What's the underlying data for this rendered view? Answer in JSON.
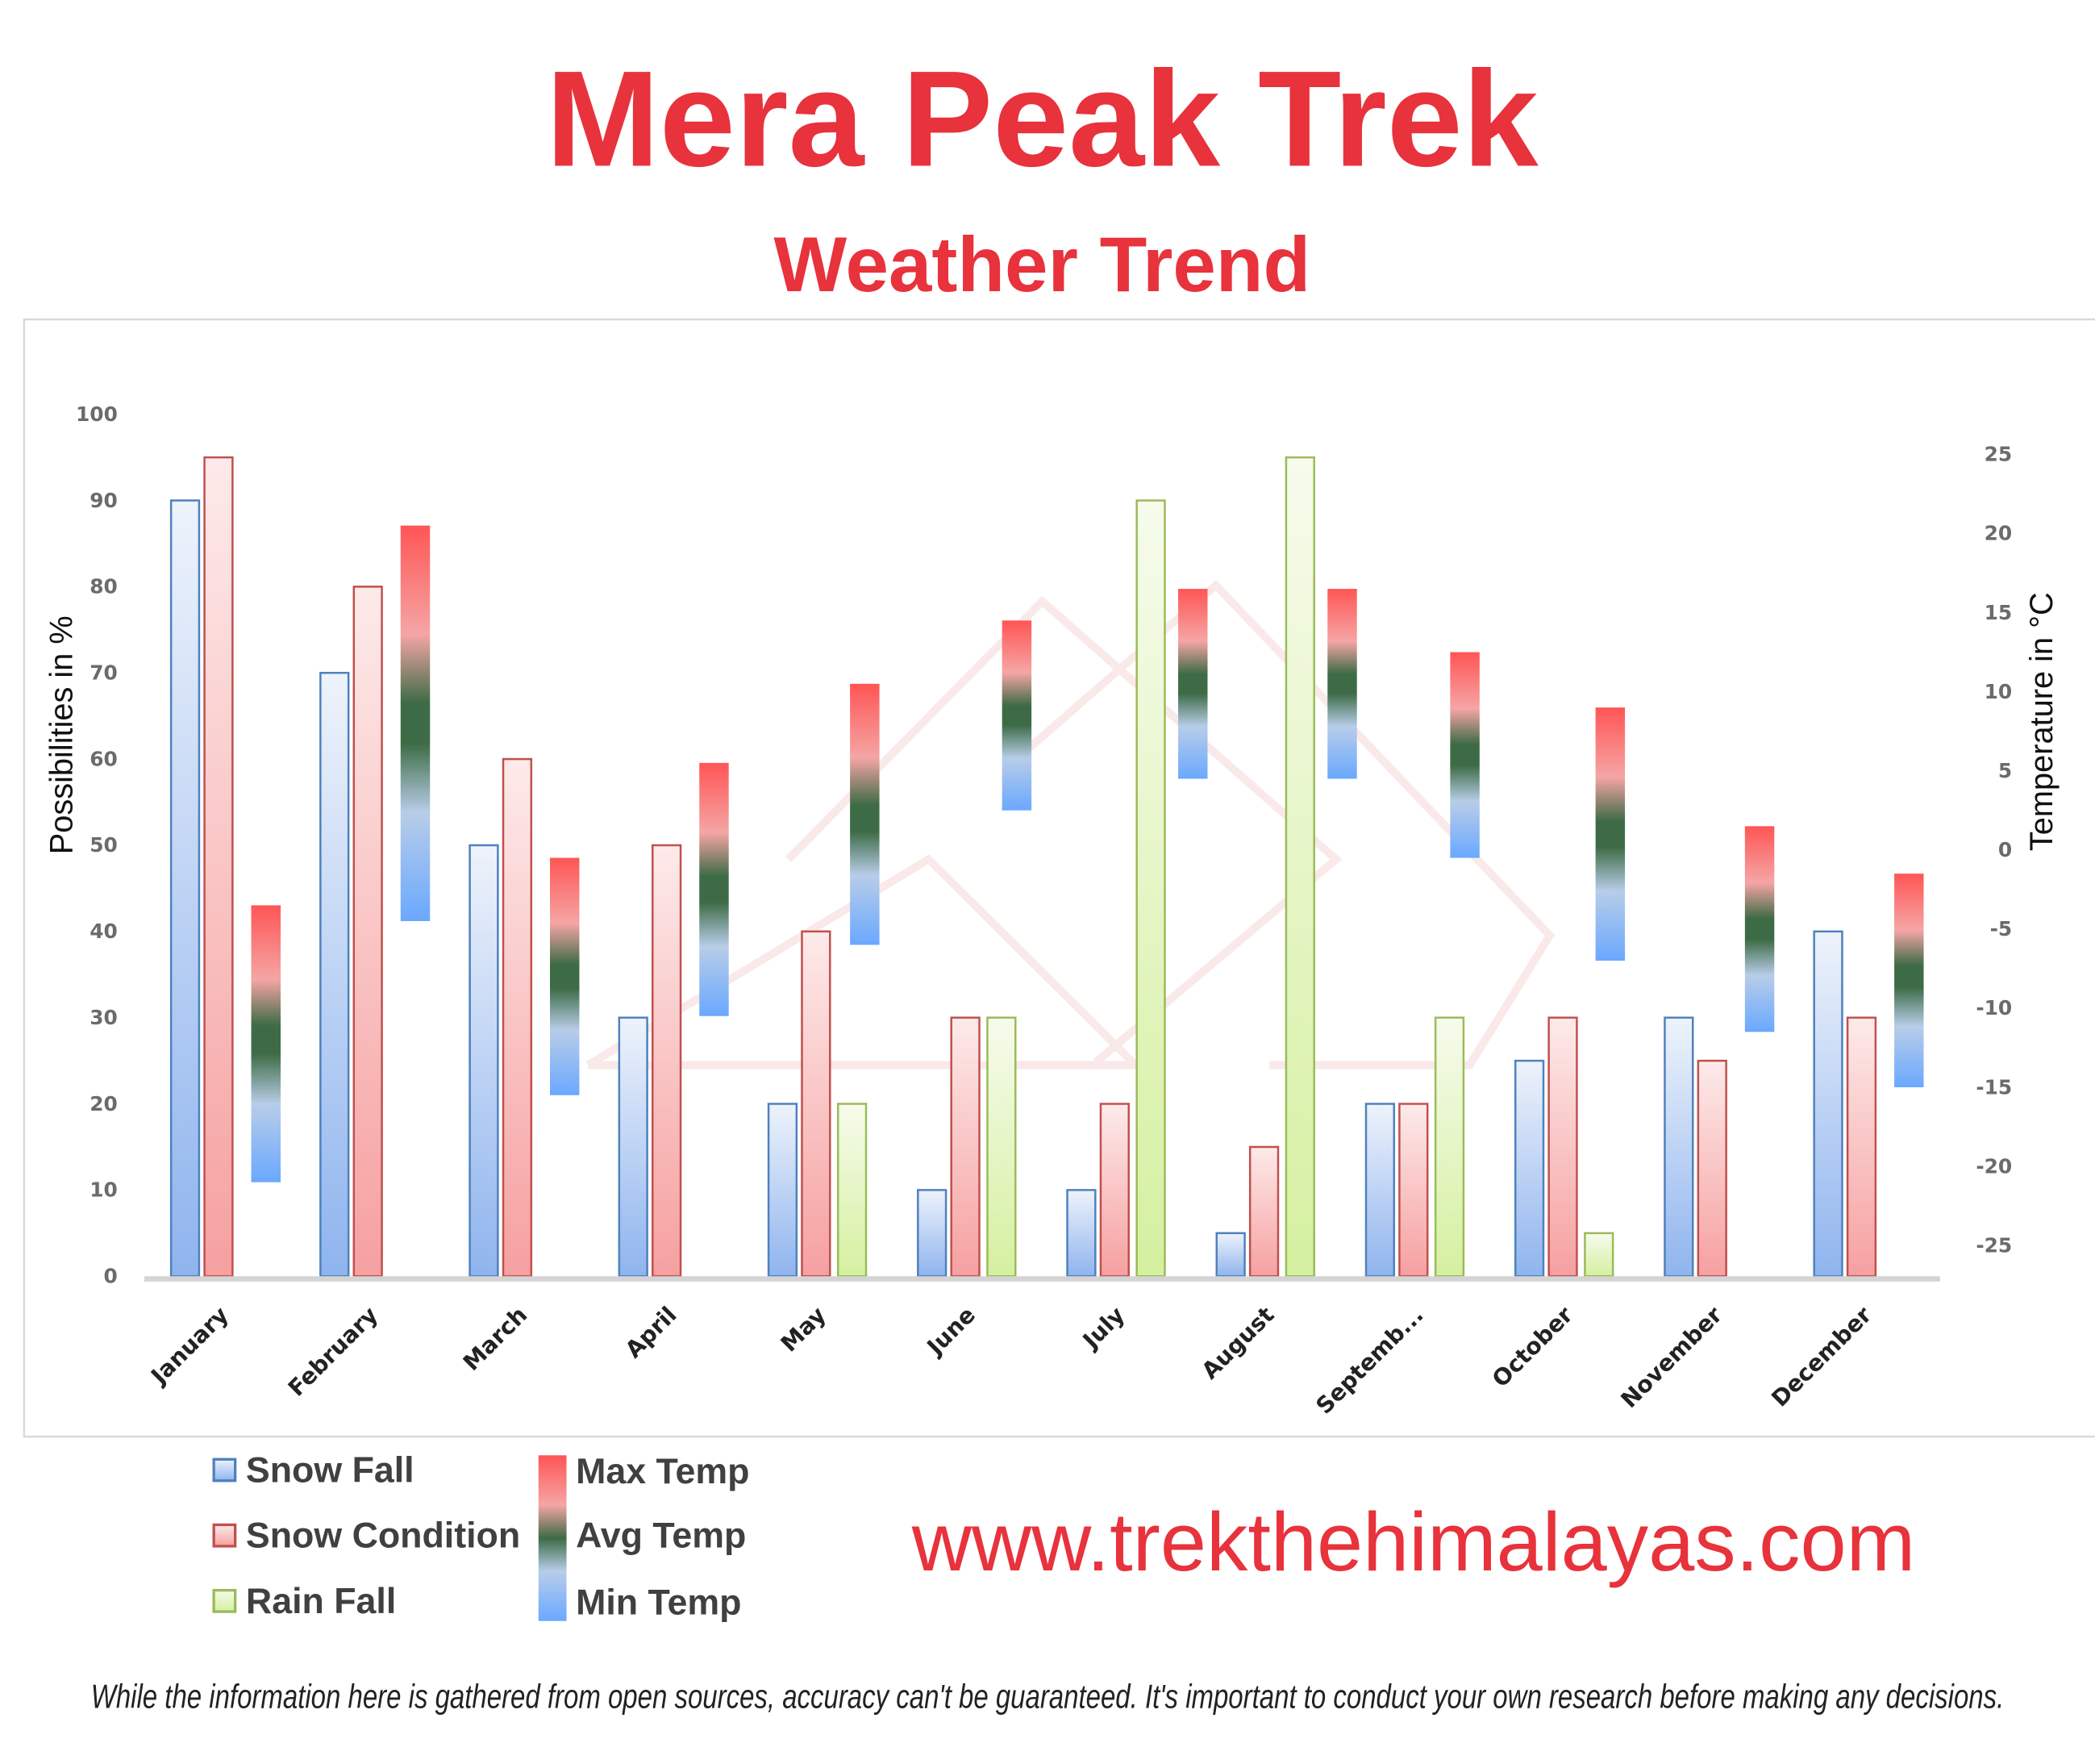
{
  "header": {
    "title": "Mera Peak Trek",
    "subtitle": "Weather Trend"
  },
  "chart_data": {
    "type": "bar",
    "categories": [
      "January",
      "February",
      "March",
      "April",
      "May",
      "June",
      "July",
      "August",
      "Septemb...",
      "October",
      "November",
      "December"
    ],
    "ylabel": "Possibilities in %",
    "y2label": "Temperature in °C",
    "ylim": [
      0,
      100
    ],
    "yticks": [
      0,
      10,
      20,
      30,
      40,
      50,
      60,
      70,
      80,
      90,
      100
    ],
    "y2lim": [
      -25,
      25
    ],
    "y2ticks": [
      -25,
      -20,
      -15,
      -10,
      -5,
      0,
      5,
      10,
      15,
      20,
      25
    ],
    "grid": false,
    "legend_position": "bottom-left",
    "series": [
      {
        "name": "Snow Fall",
        "axis": "left",
        "color": "#4f81bd",
        "values": [
          90,
          70,
          50,
          30,
          20,
          10,
          10,
          5,
          20,
          25,
          30,
          40
        ]
      },
      {
        "name": "Snow Condition",
        "axis": "left",
        "color": "#c0504d",
        "values": [
          95,
          80,
          60,
          50,
          40,
          30,
          20,
          15,
          20,
          30,
          25,
          30
        ]
      },
      {
        "name": "Rain Fall",
        "axis": "left",
        "color": "#9bbb59",
        "values": [
          0,
          0,
          0,
          0,
          20,
          30,
          90,
          95,
          30,
          5,
          0,
          0
        ]
      }
    ],
    "temperature": {
      "axis": "right",
      "max_name": "Max Temp",
      "avg_name": "Avg Temp",
      "min_name": "Min Temp",
      "max_color": "#ff5555",
      "avg_color": "#3d6b45",
      "min_color": "#6aa8ff",
      "max": [
        -3.5,
        20.5,
        -0.5,
        5.5,
        10.5,
        14.5,
        16.5,
        16.5,
        12.5,
        9,
        1.5,
        -1.5
      ],
      "avg": [
        -12,
        8,
        -8,
        -2.5,
        2,
        8.5,
        10.5,
        10.5,
        6,
        1,
        -5,
        -8
      ],
      "min": [
        -21,
        -4.5,
        -15.5,
        -10.5,
        -6,
        2.5,
        4.5,
        4.5,
        -0.5,
        -7,
        -11.5,
        -15
      ]
    }
  },
  "footer": {
    "url": "www.trekthehimalayas.com",
    "disclaimer": "While the information here is gathered from open sources, accuracy can't be guaranteed. It's important to conduct your own research before making any decisions."
  }
}
